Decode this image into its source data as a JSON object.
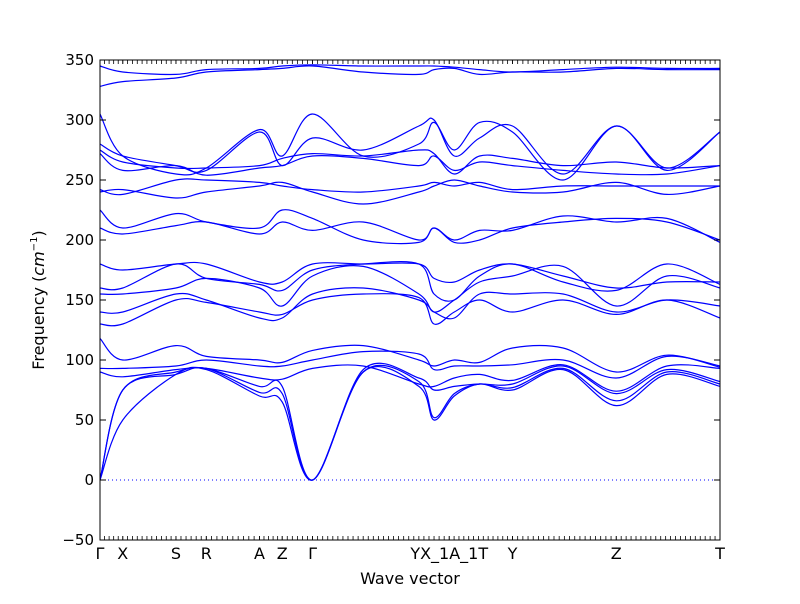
{
  "chart_data": {
    "type": "line",
    "title": "",
    "xlabel": "Wave vector",
    "ylabel": "Frequency (cm⁻¹)",
    "ylabel_main": "Frequency (",
    "ylabel_unit": "cm",
    "ylabel_exp": "−1",
    "ylabel_close": ")",
    "ylim": [
      -50,
      350
    ],
    "yticks": [
      -50,
      0,
      50,
      100,
      150,
      200,
      250,
      300,
      350
    ],
    "xlim": [
      0,
      24.5
    ],
    "grid": false,
    "line_color": "#0000ff",
    "zero_line_color": "#0000ff",
    "path_labels": [
      {
        "label": "Γ",
        "x": 0
      },
      {
        "label": "X",
        "x": 0.9
      },
      {
        "label": "S",
        "x": 3.0
      },
      {
        "label": "R",
        "x": 4.2
      },
      {
        "label": "A",
        "x": 6.3
      },
      {
        "label": "Z",
        "x": 7.2
      },
      {
        "label": "Γ",
        "x": 8.4
      },
      {
        "label": "YX_1A_1T",
        "x": 13.8
      },
      {
        "label": "Y",
        "x": 16.3
      },
      {
        "label": "Z",
        "x": 20.4
      },
      {
        "label": "T",
        "x": 24.5
      }
    ],
    "x": [
      0,
      0.9,
      3.0,
      4.2,
      6.3,
      7.2,
      8.4,
      10.4,
      12.6,
      13.2,
      14.0,
      15.0,
      16.3,
      18.3,
      20.4,
      22.4,
      24.5
    ],
    "series": [
      {
        "values": [
          0,
          50,
          88,
          92,
          70,
          65,
          0,
          90,
          78,
          50,
          70,
          80,
          75,
          92,
          62,
          88,
          78
        ]
      },
      {
        "values": [
          0,
          75,
          88,
          93,
          73,
          72,
          0,
          90,
          82,
          52,
          72,
          80,
          77,
          93,
          66,
          90,
          80
        ]
      },
      {
        "values": [
          0,
          75,
          90,
          93,
          78,
          78,
          0,
          92,
          85,
          75,
          78,
          80,
          80,
          95,
          72,
          92,
          82
        ]
      },
      {
        "values": [
          90,
          86,
          92,
          93,
          85,
          84,
          93,
          95,
          80,
          78,
          85,
          88,
          83,
          96,
          74,
          95,
          93
        ]
      },
      {
        "values": [
          93,
          93,
          95,
          100,
          95,
          95,
          100,
          107,
          105,
          92,
          95,
          95,
          96,
          100,
          85,
          103,
          95
        ]
      },
      {
        "values": [
          118,
          100,
          112,
          103,
          100,
          98,
          108,
          112,
          100,
          95,
          100,
          98,
          110,
          110,
          90,
          104,
          94
        ]
      },
      {
        "values": [
          130,
          130,
          150,
          148,
          140,
          138,
          150,
          155,
          152,
          130,
          140,
          150,
          140,
          150,
          138,
          150,
          135
        ]
      },
      {
        "values": [
          140,
          140,
          155,
          150,
          135,
          135,
          155,
          160,
          150,
          140,
          135,
          155,
          155,
          155,
          140,
          150,
          145
        ]
      },
      {
        "values": [
          155,
          155,
          160,
          168,
          160,
          145,
          170,
          178,
          155,
          140,
          150,
          165,
          170,
          178,
          145,
          170,
          160
        ]
      },
      {
        "values": [
          160,
          160,
          180,
          168,
          163,
          158,
          175,
          180,
          180,
          155,
          150,
          170,
          180,
          165,
          158,
          180,
          163
        ]
      },
      {
        "values": [
          180,
          175,
          180,
          180,
          165,
          165,
          180,
          180,
          180,
          168,
          165,
          175,
          180,
          170,
          160,
          165,
          165
        ]
      },
      {
        "values": [
          210,
          205,
          212,
          215,
          205,
          215,
          208,
          215,
          200,
          210,
          200,
          208,
          208,
          220,
          215,
          218,
          198
        ]
      },
      {
        "values": [
          225,
          210,
          222,
          215,
          210,
          225,
          218,
          200,
          198,
          210,
          198,
          200,
          210,
          215,
          218,
          215,
          200
        ]
      },
      {
        "values": [
          240,
          242,
          235,
          240,
          245,
          248,
          240,
          230,
          240,
          245,
          250,
          245,
          240,
          240,
          248,
          238,
          245
        ]
      },
      {
        "values": [
          242,
          238,
          250,
          250,
          248,
          245,
          242,
          240,
          245,
          248,
          245,
          248,
          242,
          245,
          245,
          245,
          245
        ]
      },
      {
        "values": [
          272,
          258,
          262,
          254,
          260,
          262,
          270,
          268,
          262,
          270,
          258,
          265,
          262,
          258,
          255,
          255,
          262
        ]
      },
      {
        "values": [
          275,
          265,
          260,
          260,
          262,
          268,
          272,
          270,
          275,
          272,
          255,
          270,
          268,
          262,
          265,
          260,
          262
        ]
      },
      {
        "values": [
          280,
          270,
          262,
          258,
          290,
          262,
          285,
          275,
          295,
          300,
          270,
          285,
          295,
          255,
          295,
          260,
          290
        ]
      },
      {
        "values": [
          305,
          270,
          255,
          260,
          292,
          270,
          305,
          270,
          280,
          298,
          275,
          298,
          290,
          250,
          295,
          258,
          290
        ]
      },
      {
        "values": [
          328,
          332,
          335,
          340,
          342,
          343,
          345,
          340,
          338,
          342,
          343,
          338,
          340,
          340,
          343,
          342,
          342
        ]
      },
      {
        "values": [
          345,
          340,
          338,
          342,
          343,
          345,
          346,
          345,
          345,
          345,
          344,
          342,
          340,
          342,
          344,
          343,
          343
        ]
      }
    ]
  }
}
